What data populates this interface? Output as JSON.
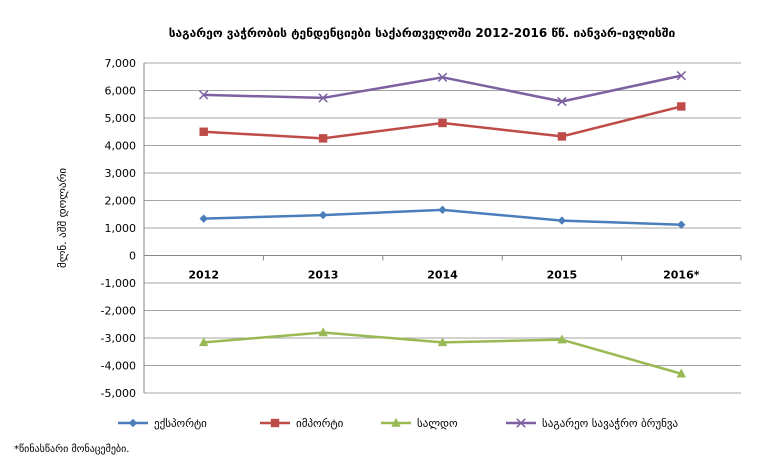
{
  "chart_data": {
    "type": "line",
    "title": "საგარეო ვაჭრობის ტენდენციები საქართველოში 2012-2016 წწ. იანვარ-ივლისში",
    "ylabel": "მლნ. აშშ დოლარი",
    "xlabel": "",
    "categories": [
      "2012",
      "2013",
      "2014",
      "2015",
      "2016*"
    ],
    "ylim": [
      -5000,
      7000
    ],
    "yticks": [
      7000,
      6000,
      5000,
      4000,
      3000,
      2000,
      1000,
      0,
      -1000,
      -2000,
      -3000,
      -4000,
      -5000
    ],
    "ytick_labels": [
      "7,000",
      "6,000",
      "5,000",
      "4,000",
      "3,000",
      "2,000",
      "1,000",
      "0",
      "-1,000",
      "-2,000",
      "-3,000",
      "-4,000",
      "-5,000"
    ],
    "grid": true,
    "legend_position": "bottom",
    "series": [
      {
        "name": "ექსპორტი",
        "values": [
          1340,
          1470,
          1660,
          1270,
          1120
        ],
        "color": "#4a7ebb",
        "marker": "diamond"
      },
      {
        "name": "იმპორტი",
        "values": [
          4500,
          4260,
          4820,
          4330,
          5420
        ],
        "color": "#be4b48",
        "marker": "square"
      },
      {
        "name": "სალდო",
        "values": [
          -3160,
          -2800,
          -3160,
          -3060,
          -4300
        ],
        "color": "#98b954",
        "marker": "triangle"
      },
      {
        "name": "საგარეო სავაჭრო ბრუნვა",
        "values": [
          5840,
          5730,
          6480,
          5600,
          6540
        ],
        "color": "#7d60a0",
        "marker": "x"
      }
    ]
  },
  "footnote": "*წინასწარი მონაცემები."
}
